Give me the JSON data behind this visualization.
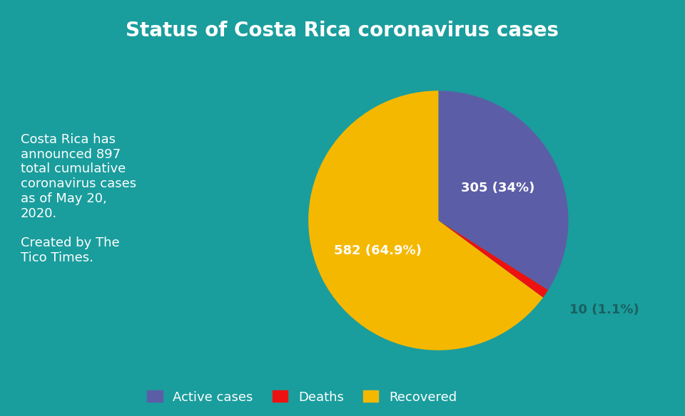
{
  "title": "Status of Costa Rica coronavirus cases",
  "background_color": "#1a9d9d",
  "title_color": "#ffffff",
  "title_fontsize": 20,
  "slices": [
    305,
    10,
    582
  ],
  "labels": [
    "Active cases",
    "Deaths",
    "Recovered"
  ],
  "slice_labels": [
    "305 (34%)",
    "10 (1.1%)",
    "582 (64.9%)"
  ],
  "colors": [
    "#5b5ea6",
    "#ee1111",
    "#f5b800"
  ],
  "text_color": "#ffffff",
  "deaths_label_color": "#1a6060",
  "annotation_text": "Costa Rica has\nannounced 897\ntotal cumulative\ncoronavirus cases\nas of May 20,\n2020.\n\nCreated by The\nTico Times.",
  "annotation_fontsize": 13,
  "legend_fontsize": 13,
  "label_fontsize": 13,
  "startangle": 90
}
